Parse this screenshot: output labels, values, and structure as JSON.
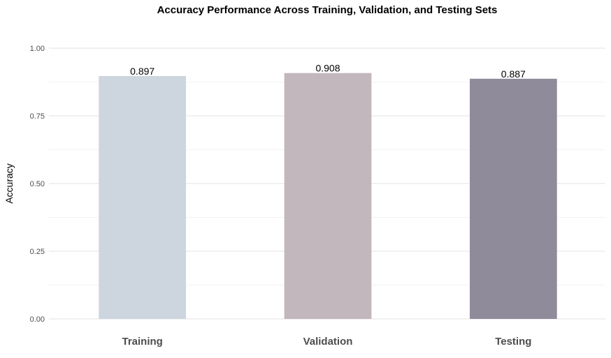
{
  "chart_data": {
    "type": "bar",
    "title": "Accuracy Performance Across Training, Validation, and Testing Sets",
    "xlabel": "",
    "ylabel": "Accuracy",
    "categories": [
      "Training",
      "Validation",
      "Testing"
    ],
    "values": [
      0.897,
      0.908,
      0.887
    ],
    "data_labels": [
      "0.897",
      "0.908",
      "0.887"
    ],
    "ylim": [
      0,
      1
    ],
    "y_ticks": [
      0,
      0.25,
      0.5,
      0.75,
      1.0
    ],
    "y_tick_labels": [
      "0.00",
      "0.25",
      "0.50",
      "0.75",
      "1.00"
    ],
    "grid": true,
    "legend": "none",
    "colors": [
      "#cdd5de",
      "#c2b7bc",
      "#8f8b9b"
    ]
  }
}
